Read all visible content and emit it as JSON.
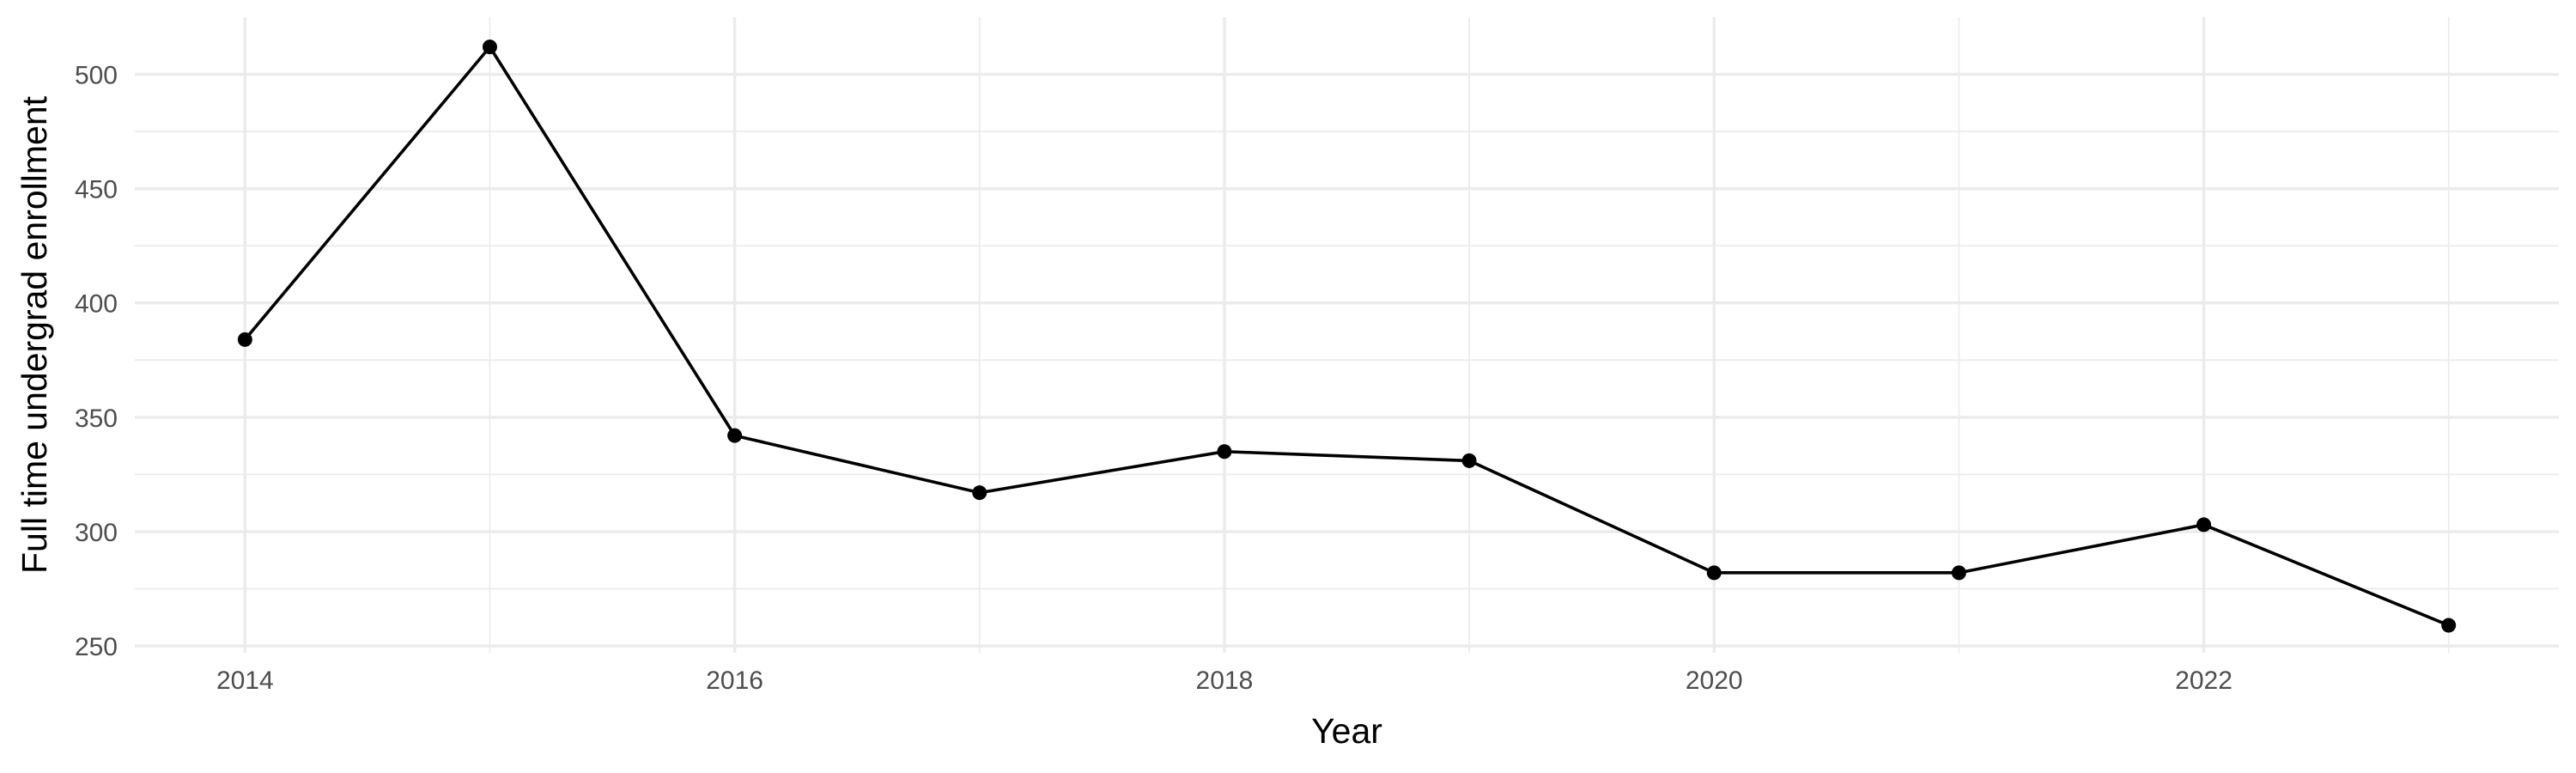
{
  "chart_data": {
    "type": "line",
    "title": "",
    "xlabel": "Year",
    "ylabel": "Full time undergrad enrollment",
    "x": [
      2014,
      2015,
      2016,
      2017,
      2018,
      2019,
      2020,
      2021,
      2022,
      2023
    ],
    "series": [
      {
        "values": [
          384,
          512,
          342,
          317,
          335,
          331,
          282,
          282,
          303,
          259
        ]
      }
    ],
    "xlim": [
      2013.55,
      2023.45
    ],
    "ylim": [
      247,
      525
    ],
    "x_ticks": [
      2014,
      2016,
      2018,
      2020,
      2022
    ],
    "y_ticks": [
      250,
      300,
      350,
      400,
      450,
      500
    ],
    "grid": true,
    "legend": "none",
    "line_color": "#000000",
    "grid_color": "#ebebeb"
  }
}
